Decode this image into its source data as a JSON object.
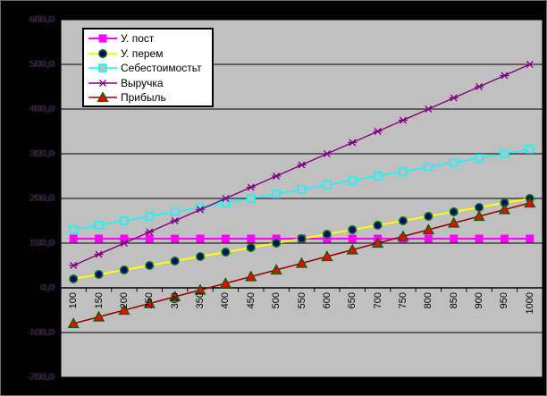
{
  "chart_data": {
    "type": "line",
    "title": "",
    "xlabel": "",
    "ylabel": "",
    "grid": true,
    "legend_position": "top-left-inside",
    "plot_bg": "#c0c0c0",
    "outer_bg": "#000000",
    "gridline_color": "#000000",
    "ylim": [
      -200,
      600
    ],
    "y_step": 100,
    "y_tick_labels": [
      "600,0",
      "500,0",
      "400,0",
      "300,0",
      "200,0",
      "100,0",
      "0,0",
      "-100,0",
      "-200,0"
    ],
    "categories": [
      "100",
      "150",
      "200",
      "250",
      "300",
      "350",
      "400",
      "450",
      "500",
      "550",
      "600",
      "650",
      "700",
      "750",
      "800",
      "850",
      "900",
      "950",
      "1000"
    ],
    "series": [
      {
        "name": "У. пост",
        "line_color": "#ff00ff",
        "line_width": 2,
        "marker": "square",
        "marker_fill": "#ff00ff",
        "marker_edge": "#ff00ff",
        "values": [
          110,
          110,
          110,
          110,
          110,
          110,
          110,
          110,
          110,
          110,
          110,
          110,
          110,
          110,
          110,
          110,
          110,
          110,
          110
        ]
      },
      {
        "name": "У. перем",
        "line_color": "#ffff00",
        "line_width": 2,
        "marker": "circle",
        "marker_fill": "#000080",
        "marker_edge": "#008000",
        "values": [
          20,
          30,
          40,
          50,
          60,
          70,
          80,
          90,
          100,
          110,
          120,
          130,
          140,
          150,
          160,
          170,
          180,
          190,
          200
        ]
      },
      {
        "name": "Себестоимостьт",
        "line_color": "#00ffff",
        "line_width": 1.5,
        "marker": "open-square",
        "marker_fill": "#c0c0c0",
        "marker_edge": "#00ffff",
        "values": [
          130,
          140,
          150,
          160,
          170,
          180,
          190,
          200,
          210,
          220,
          230,
          240,
          250,
          260,
          270,
          280,
          290,
          300,
          310
        ]
      },
      {
        "name": "Выручка",
        "line_color": "#800080",
        "line_width": 1.4,
        "marker": "star",
        "marker_fill": "#800080",
        "marker_edge": "#800080",
        "values": [
          50,
          75,
          100,
          125,
          150,
          175,
          200,
          225,
          250,
          275,
          300,
          325,
          350,
          375,
          400,
          425,
          450,
          475,
          500
        ]
      },
      {
        "name": "Прибыль",
        "line_color": "#990000",
        "line_width": 1.6,
        "marker": "triangle",
        "marker_fill": "#ff0000",
        "marker_edge": "#006400",
        "values": [
          -80,
          -65,
          -50,
          -35,
          -20,
          -5,
          10,
          25,
          40,
          55,
          70,
          85,
          100,
          115,
          130,
          145,
          160,
          175,
          190
        ]
      }
    ]
  }
}
